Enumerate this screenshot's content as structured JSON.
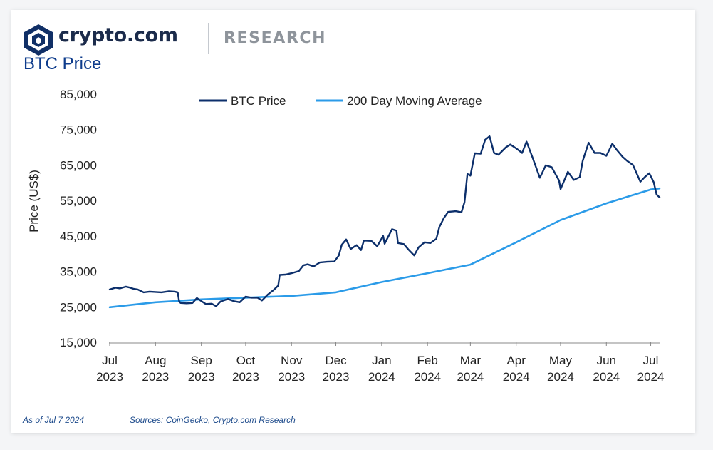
{
  "brand": {
    "name": "crypto.com",
    "section": "RESEARCH"
  },
  "footer": {
    "as_of": "As of Jul 7 2024",
    "sources": "Sources: CoinGecko, Crypto.com Research"
  },
  "chart_data": {
    "type": "line",
    "title": "BTC Price",
    "ylabel": "Price (US$)",
    "xlabel": "",
    "ylim": [
      15000,
      85000
    ],
    "yticks": [
      15000,
      25000,
      35000,
      45000,
      55000,
      65000,
      75000,
      85000
    ],
    "xlim": [
      "2023-07-01",
      "2024-07-07"
    ],
    "xticks": [
      {
        "date": "2023-07-01",
        "month": "Jul",
        "year": "2023"
      },
      {
        "date": "2023-08-01",
        "month": "Aug",
        "year": "2023"
      },
      {
        "date": "2023-09-01",
        "month": "Sep",
        "year": "2023"
      },
      {
        "date": "2023-10-01",
        "month": "Oct",
        "year": "2023"
      },
      {
        "date": "2023-11-01",
        "month": "Nov",
        "year": "2023"
      },
      {
        "date": "2023-12-01",
        "month": "Dec",
        "year": "2023"
      },
      {
        "date": "2024-01-01",
        "month": "Jan",
        "year": "2024"
      },
      {
        "date": "2024-02-01",
        "month": "Feb",
        "year": "2024"
      },
      {
        "date": "2024-03-01",
        "month": "Mar",
        "year": "2024"
      },
      {
        "date": "2024-04-01",
        "month": "Apr",
        "year": "2024"
      },
      {
        "date": "2024-05-01",
        "month": "May",
        "year": "2024"
      },
      {
        "date": "2024-06-01",
        "month": "Jun",
        "year": "2024"
      },
      {
        "date": "2024-07-01",
        "month": "Jul",
        "year": "2024"
      }
    ],
    "grid": false,
    "legend": "top-center",
    "series": [
      {
        "name": "BTC Price",
        "color": "#0c2f6b",
        "points": [
          [
            "2023-07-01",
            29900
          ],
          [
            "2023-07-05",
            30400
          ],
          [
            "2023-07-08",
            30200
          ],
          [
            "2023-07-12",
            30700
          ],
          [
            "2023-07-14",
            30500
          ],
          [
            "2023-07-17",
            30100
          ],
          [
            "2023-07-20",
            29900
          ],
          [
            "2023-07-24",
            29100
          ],
          [
            "2023-07-28",
            29300
          ],
          [
            "2023-08-01",
            29200
          ],
          [
            "2023-08-05",
            29100
          ],
          [
            "2023-08-10",
            29400
          ],
          [
            "2023-08-14",
            29300
          ],
          [
            "2023-08-16",
            29100
          ],
          [
            "2023-08-17",
            26600
          ],
          [
            "2023-08-18",
            26100
          ],
          [
            "2023-08-22",
            26000
          ],
          [
            "2023-08-26",
            26100
          ],
          [
            "2023-08-29",
            27500
          ],
          [
            "2023-08-31",
            26900
          ],
          [
            "2023-09-04",
            25800
          ],
          [
            "2023-09-08",
            25900
          ],
          [
            "2023-09-11",
            25200
          ],
          [
            "2023-09-14",
            26500
          ],
          [
            "2023-09-19",
            27200
          ],
          [
            "2023-09-23",
            26600
          ],
          [
            "2023-09-27",
            26300
          ],
          [
            "2023-10-01",
            27900
          ],
          [
            "2023-10-05",
            27600
          ],
          [
            "2023-10-09",
            27600
          ],
          [
            "2023-10-12",
            26800
          ],
          [
            "2023-10-16",
            28500
          ],
          [
            "2023-10-20",
            29800
          ],
          [
            "2023-10-23",
            31000
          ],
          [
            "2023-10-24",
            34000
          ],
          [
            "2023-10-28",
            34100
          ],
          [
            "2023-11-01",
            34500
          ],
          [
            "2023-11-06",
            35100
          ],
          [
            "2023-11-09",
            36700
          ],
          [
            "2023-11-12",
            37000
          ],
          [
            "2023-11-16",
            36400
          ],
          [
            "2023-11-20",
            37500
          ],
          [
            "2023-11-25",
            37700
          ],
          [
            "2023-11-30",
            37800
          ],
          [
            "2023-12-03",
            39500
          ],
          [
            "2023-12-05",
            42500
          ],
          [
            "2023-12-08",
            44000
          ],
          [
            "2023-12-11",
            41300
          ],
          [
            "2023-12-15",
            42400
          ],
          [
            "2023-12-18",
            41000
          ],
          [
            "2023-12-20",
            43700
          ],
          [
            "2023-12-25",
            43600
          ],
          [
            "2023-12-29",
            42100
          ],
          [
            "2024-01-02",
            45000
          ],
          [
            "2024-01-03",
            42800
          ],
          [
            "2024-01-08",
            46900
          ],
          [
            "2024-01-11",
            46500
          ],
          [
            "2024-01-12",
            43000
          ],
          [
            "2024-01-16",
            42700
          ],
          [
            "2024-01-19",
            41200
          ],
          [
            "2024-01-23",
            39500
          ],
          [
            "2024-01-26",
            41800
          ],
          [
            "2024-01-30",
            43200
          ],
          [
            "2024-02-03",
            43000
          ],
          [
            "2024-02-07",
            44200
          ],
          [
            "2024-02-09",
            47500
          ],
          [
            "2024-02-12",
            50000
          ],
          [
            "2024-02-15",
            51800
          ],
          [
            "2024-02-20",
            52000
          ],
          [
            "2024-02-24",
            51700
          ],
          [
            "2024-02-26",
            54500
          ],
          [
            "2024-02-28",
            62500
          ],
          [
            "2024-03-01",
            62000
          ],
          [
            "2024-03-04",
            68300
          ],
          [
            "2024-03-08",
            68200
          ],
          [
            "2024-03-11",
            72100
          ],
          [
            "2024-03-14",
            73100
          ],
          [
            "2024-03-17",
            68400
          ],
          [
            "2024-03-20",
            67900
          ],
          [
            "2024-03-25",
            70000
          ],
          [
            "2024-03-28",
            70800
          ],
          [
            "2024-04-01",
            69700
          ],
          [
            "2024-04-05",
            68400
          ],
          [
            "2024-04-08",
            71600
          ],
          [
            "2024-04-12",
            67200
          ],
          [
            "2024-04-17",
            61400
          ],
          [
            "2024-04-21",
            64900
          ],
          [
            "2024-04-25",
            64400
          ],
          [
            "2024-04-30",
            60600
          ],
          [
            "2024-05-01",
            58200
          ],
          [
            "2024-05-06",
            63100
          ],
          [
            "2024-05-10",
            60800
          ],
          [
            "2024-05-14",
            61600
          ],
          [
            "2024-05-16",
            66200
          ],
          [
            "2024-05-20",
            71300
          ],
          [
            "2024-05-24",
            68400
          ],
          [
            "2024-05-28",
            68400
          ],
          [
            "2024-06-01",
            67600
          ],
          [
            "2024-06-05",
            71000
          ],
          [
            "2024-06-08",
            69300
          ],
          [
            "2024-06-12",
            67300
          ],
          [
            "2024-06-15",
            66200
          ],
          [
            "2024-06-19",
            65000
          ],
          [
            "2024-06-24",
            60300
          ],
          [
            "2024-06-27",
            61600
          ],
          [
            "2024-06-30",
            62700
          ],
          [
            "2024-07-03",
            60200
          ],
          [
            "2024-07-05",
            56700
          ],
          [
            "2024-07-07",
            55900
          ]
        ]
      },
      {
        "name": "200 Day Moving Average",
        "color": "#2b9be8",
        "points": [
          [
            "2023-07-01",
            24900
          ],
          [
            "2023-08-01",
            26300
          ],
          [
            "2023-09-01",
            27100
          ],
          [
            "2023-10-01",
            27600
          ],
          [
            "2023-11-01",
            28100
          ],
          [
            "2023-12-01",
            29100
          ],
          [
            "2024-01-01",
            32000
          ],
          [
            "2024-02-01",
            34500
          ],
          [
            "2024-03-01",
            36900
          ],
          [
            "2024-04-01",
            43200
          ],
          [
            "2024-05-01",
            49500
          ],
          [
            "2024-06-01",
            54200
          ],
          [
            "2024-07-01",
            58100
          ],
          [
            "2024-07-07",
            58400
          ]
        ]
      }
    ]
  }
}
